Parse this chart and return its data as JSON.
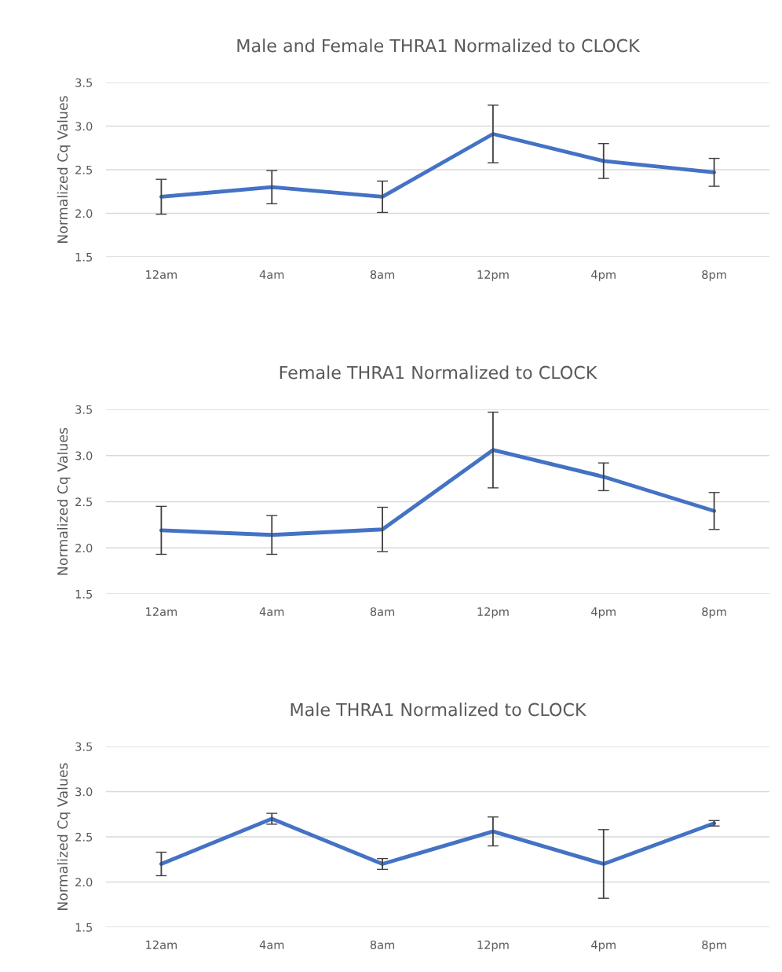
{
  "chart_data": [
    {
      "type": "line",
      "title": "Male and Female THRA1 Normalized to CLOCK",
      "ylabel": "Normalized Cq Values",
      "categories": [
        "12am",
        "4am",
        "8am",
        "12pm",
        "4pm",
        "8pm"
      ],
      "series": [
        {
          "color": "#4472c4",
          "values": [
            2.19,
            2.3,
            2.19,
            2.91,
            2.6,
            2.47
          ],
          "errors": [
            0.2,
            0.19,
            0.18,
            0.33,
            0.2,
            0.16
          ]
        }
      ],
      "ylim": [
        1.5,
        3.5
      ],
      "yticks": [
        {
          "value": 1.5,
          "label": "1.5"
        },
        {
          "value": 2.0,
          "label": "2.0"
        },
        {
          "value": 2.5,
          "label": "2.5"
        },
        {
          "value": 3.0,
          "label": "3.0"
        },
        {
          "value": 3.5,
          "label": "3.5"
        }
      ],
      "grid": "y",
      "marker": "none",
      "line_style": "solid"
    },
    {
      "type": "line",
      "title": "Female THRA1 Normalized to CLOCK",
      "ylabel": "Normalized Cq Values",
      "categories": [
        "12am",
        "4am",
        "8am",
        "12pm",
        "4pm",
        "8pm"
      ],
      "series": [
        {
          "color": "#4472c4",
          "values": [
            2.19,
            2.14,
            2.2,
            3.06,
            2.77,
            2.4
          ],
          "errors": [
            0.26,
            0.21,
            0.24,
            0.41,
            0.15,
            0.2
          ]
        }
      ],
      "ylim": [
        1.5,
        3.5
      ],
      "yticks": [
        {
          "value": 1.5,
          "label": "1.5"
        },
        {
          "value": 2.0,
          "label": "2.0"
        },
        {
          "value": 2.5,
          "label": "2.5"
        },
        {
          "value": 3.0,
          "label": "3.0"
        },
        {
          "value": 3.5,
          "label": "3.5"
        }
      ],
      "grid": "y",
      "marker": "none",
      "line_style": "solid"
    },
    {
      "type": "line",
      "title": "Male THRA1 Normalized to CLOCK",
      "ylabel": "Normalized Cq Values",
      "categories": [
        "12am",
        "4am",
        "8am",
        "12pm",
        "4pm",
        "8pm"
      ],
      "series": [
        {
          "color": "#4472c4",
          "values": [
            2.2,
            2.7,
            2.2,
            2.56,
            2.2,
            2.65
          ],
          "errors": [
            0.13,
            0.06,
            0.06,
            0.16,
            0.38,
            0.03
          ]
        }
      ],
      "ylim": [
        1.5,
        3.5
      ],
      "yticks": [
        {
          "value": 1.5,
          "label": "1.5"
        },
        {
          "value": 2.0,
          "label": "2.0"
        },
        {
          "value": 2.5,
          "label": "2.5"
        },
        {
          "value": 3.0,
          "label": "3.0"
        },
        {
          "value": 3.5,
          "label": "3.5"
        }
      ],
      "grid": "y",
      "marker": "none",
      "line_style": "solid"
    }
  ]
}
